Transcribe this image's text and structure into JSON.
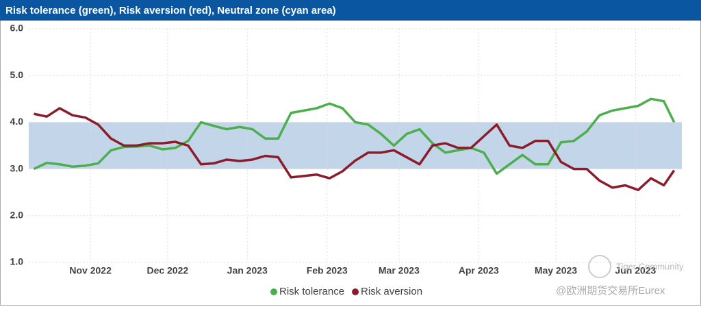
{
  "chart_data": {
    "type": "line",
    "title": "Risk tolerance (green), Risk aversion (red), Neutral zone (cyan area)",
    "x": [
      5,
      10,
      15,
      20,
      25,
      30,
      35,
      40,
      45,
      50,
      55,
      60,
      65,
      70,
      75,
      80,
      85,
      90,
      95,
      100,
      105,
      110,
      115,
      120,
      125,
      130,
      135,
      140,
      145,
      150,
      155,
      160,
      165,
      170,
      175,
      180,
      185,
      190,
      195,
      200,
      205,
      210,
      215,
      220,
      225,
      230,
      235,
      240,
      245,
      250,
      254
    ],
    "xlim": [
      3,
      257
    ],
    "xticks": [
      {
        "value": 27,
        "label": "Nov 2022"
      },
      {
        "value": 57,
        "label": "Dec 2022"
      },
      {
        "value": 88,
        "label": "Jan 2023"
      },
      {
        "value": 119,
        "label": "Feb 2023"
      },
      {
        "value": 147,
        "label": "Mar 2023"
      },
      {
        "value": 178,
        "label": "Apr 2023"
      },
      {
        "value": 208,
        "label": "May 2023"
      },
      {
        "value": 239,
        "label": "Jun 2023"
      }
    ],
    "ylim": [
      1,
      6
    ],
    "yticks": [
      {
        "value": 1,
        "label": "1.0"
      },
      {
        "value": 2,
        "label": "2.0"
      },
      {
        "value": 3,
        "label": "3.0"
      },
      {
        "value": 4,
        "label": "4.0"
      },
      {
        "value": 5,
        "label": "5.0"
      },
      {
        "value": 6,
        "label": "6.0"
      }
    ],
    "grid": true,
    "band": {
      "from": 3,
      "to": 4,
      "color": "#c3d5e8"
    },
    "series": [
      {
        "name": "Risk tolerance",
        "color": "#4cae4c",
        "values": [
          3.0,
          3.13,
          3.1,
          3.05,
          3.07,
          3.12,
          3.4,
          3.47,
          3.48,
          3.5,
          3.42,
          3.45,
          3.6,
          4.0,
          3.92,
          3.85,
          3.9,
          3.85,
          3.65,
          3.65,
          4.2,
          4.25,
          4.3,
          4.4,
          4.3,
          4.0,
          3.95,
          3.75,
          3.5,
          3.75,
          3.85,
          3.55,
          3.35,
          3.4,
          3.45,
          3.35,
          2.9,
          3.1,
          3.3,
          3.1,
          3.1,
          3.57,
          3.6,
          3.8,
          4.15,
          4.25,
          4.3,
          4.35,
          4.5,
          4.45,
          4.0
        ]
      },
      {
        "name": "Risk aversion",
        "color": "#8b1c2c",
        "values": [
          4.18,
          4.12,
          4.3,
          4.15,
          4.1,
          3.95,
          3.65,
          3.5,
          3.5,
          3.55,
          3.55,
          3.58,
          3.5,
          3.1,
          3.12,
          3.2,
          3.17,
          3.2,
          3.28,
          3.25,
          2.82,
          2.85,
          2.88,
          2.8,
          2.95,
          3.18,
          3.35,
          3.35,
          3.4,
          3.25,
          3.1,
          3.5,
          3.55,
          3.45,
          3.45,
          3.7,
          3.95,
          3.5,
          3.45,
          3.6,
          3.6,
          3.15,
          3.0,
          3.0,
          2.75,
          2.6,
          2.65,
          2.55,
          2.8,
          2.65,
          2.97
        ]
      }
    ],
    "watermark": [
      "Tiger Community",
      "@欧洲期货交易所Eurex"
    ]
  }
}
